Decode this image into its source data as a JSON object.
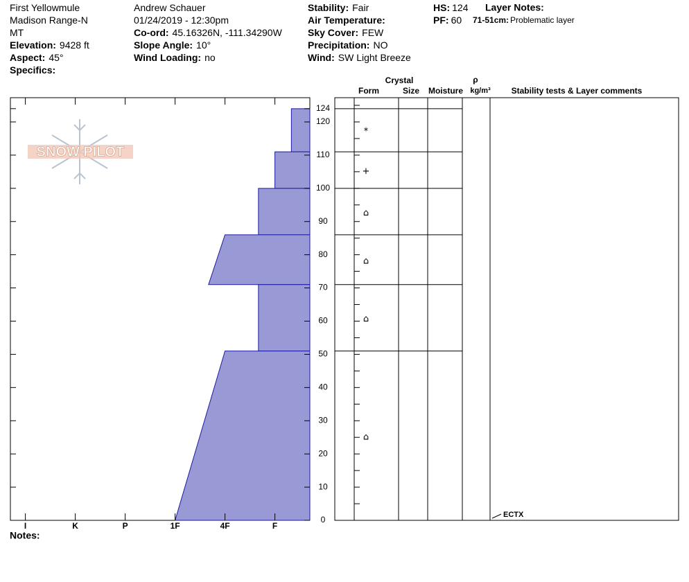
{
  "header": {
    "columns": [
      [
        {
          "text": "First Yellowmule"
        },
        {
          "text": "Madison Range-N"
        },
        {
          "text": "MT"
        },
        {
          "label": "Elevation:",
          "value": "9428 ft"
        },
        {
          "label": "Aspect:",
          "value": "45°"
        },
        {
          "label": "Specifics:"
        }
      ],
      [
        {
          "text": "Andrew Schauer"
        },
        {
          "text": "01/24/2019 - 12:30pm"
        },
        {
          "label": "Co-ord:",
          "value": "45.16326N, -111.34290W"
        },
        {
          "label": "Slope Angle:",
          "value": "10°"
        },
        {
          "label": "Wind Loading:",
          "value": "no"
        }
      ],
      [
        {
          "label": "Stability:",
          "value": "Fair"
        },
        {
          "label": "Air Temperature:"
        },
        {
          "label": "Sky Cover:",
          "value": "FEW"
        },
        {
          "label": "Precipitation:",
          "value": "NO"
        },
        {
          "label": "Wind:",
          "value": "SW Light Breeze"
        }
      ]
    ],
    "hs": {
      "label": "HS:",
      "value": 124
    },
    "pf": {
      "label": "PF:",
      "value": 60
    },
    "layer_notes": {
      "title": "Layer Notes:",
      "notes": [
        {
          "range": "71-51cm:",
          "text": "Problematic layer"
        }
      ]
    }
  },
  "logo": "SNOW PILOT",
  "notes_label": "Notes:",
  "chart_data": {
    "type": "snow-profile",
    "color": "#9999d6",
    "xlim": [
      6.3,
      0.3
    ],
    "ylim": [
      0,
      127.3
    ],
    "xticks": [
      {
        "value": 6,
        "label": "I"
      },
      {
        "value": 5,
        "label": "K"
      },
      {
        "value": 4,
        "label": "P"
      },
      {
        "value": 3,
        "label": "1F"
      },
      {
        "value": 2,
        "label": "4F"
      },
      {
        "value": 1,
        "label": "F"
      }
    ],
    "yticks": [
      0,
      10,
      20,
      30,
      40,
      50,
      60,
      70,
      80,
      90,
      100,
      110,
      120,
      124
    ],
    "layers": [
      {
        "top": 124,
        "bottom": 111,
        "hardness_top": 0.67,
        "hardness_bottom": 0.67,
        "form": "*"
      },
      {
        "top": 111,
        "bottom": 100,
        "hardness_top": 1,
        "hardness_bottom": 1,
        "form": "+"
      },
      {
        "top": 100,
        "bottom": 86,
        "hardness_top": 1.33,
        "hardness_bottom": 1.33,
        "form": "⌂"
      },
      {
        "top": 86,
        "bottom": 71,
        "hardness_top": 2,
        "hardness_bottom": 2.33,
        "form": "⌂"
      },
      {
        "top": 71,
        "bottom": 51,
        "hardness_top": 1.33,
        "hardness_bottom": 1.33,
        "form": "⌂"
      },
      {
        "top": 51,
        "bottom": 0,
        "hardness_top": 2,
        "hardness_bottom": 3,
        "form": "⌂"
      }
    ],
    "column_headers": {
      "crystal": "Crystal",
      "form": "Form",
      "size": "Size",
      "moisture": "Moisture",
      "rho": "ρ",
      "density_unit": "kg/m³",
      "comments": "Stability tests & Layer comments"
    },
    "stability_tests": [
      {
        "result": "ECTX",
        "depth": 0
      }
    ]
  }
}
